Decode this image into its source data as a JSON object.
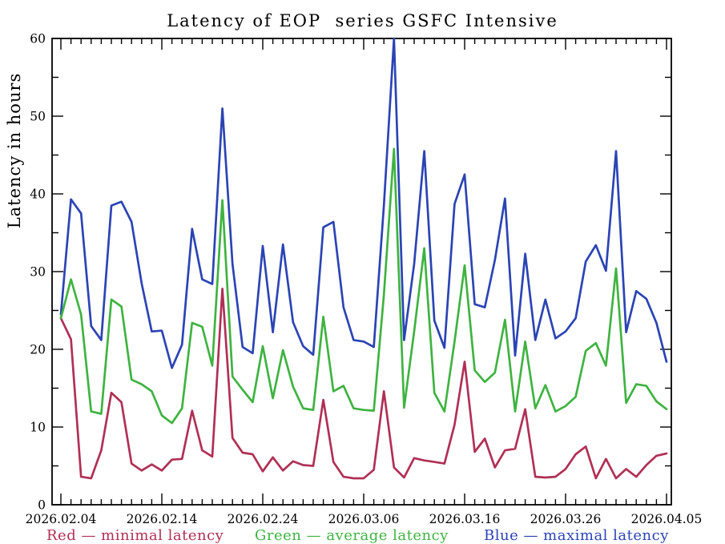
{
  "page": {
    "background": "#ffffff",
    "axis_color": "#000000"
  },
  "chart_data": {
    "type": "line",
    "title": "Latency of EOP  series GSFC Intensive",
    "ylabel": "Latency in hours",
    "xlabel": "",
    "ylim": [
      0,
      60
    ],
    "ytick_values": [
      0,
      10,
      20,
      30,
      40,
      50,
      60
    ],
    "ytick_labels": [
      "0",
      "10",
      "20",
      "30",
      "40",
      "50",
      "60"
    ],
    "ytick_minor_step": 5,
    "x_start_date": "2026.02.04",
    "x_end_date": "2026.04.05",
    "x_days": 61,
    "xtick_day_interval": 10,
    "xtick_labels": [
      "2026.02.04",
      "2026.02.14",
      "2026.02.24",
      "2026.03.06",
      "2026.03.16",
      "2026.03.26",
      "2026.04.05"
    ],
    "grid": false,
    "legend_position": "bottom",
    "series": [
      {
        "name": "minimal-latency",
        "legend_label": "Red — minimal latency",
        "color": "#b03055",
        "values": [
          24.0,
          21.3,
          3.6,
          3.4,
          7.0,
          14.4,
          13.2,
          5.3,
          4.4,
          5.2,
          4.4,
          5.8,
          5.9,
          12.1,
          7.0,
          6.2,
          27.8,
          8.6,
          6.7,
          6.5,
          4.3,
          6.1,
          4.4,
          5.6,
          5.1,
          5.0,
          13.5,
          5.5,
          3.6,
          3.4,
          3.4,
          4.5,
          14.6,
          4.8,
          3.5,
          6.0,
          5.7,
          5.5,
          5.3,
          10.3,
          18.4,
          6.8,
          8.5,
          4.8,
          7.0,
          7.2,
          12.3,
          3.6,
          3.5,
          3.6,
          4.6,
          6.5,
          7.5,
          3.4,
          5.9,
          3.4,
          4.6,
          3.6,
          5.1,
          6.3,
          6.6
        ]
      },
      {
        "name": "average-latency",
        "legend_label": "Green — average latency",
        "color": "#3fb341",
        "values": [
          24.0,
          29.0,
          24.5,
          12.0,
          11.7,
          26.4,
          25.5,
          16.1,
          15.5,
          14.6,
          11.5,
          10.5,
          12.4,
          23.4,
          22.9,
          17.9,
          39.2,
          16.5,
          14.8,
          13.2,
          20.4,
          13.7,
          19.9,
          15.2,
          12.4,
          12.2,
          24.2,
          14.6,
          15.3,
          12.4,
          12.2,
          12.1,
          27.0,
          45.8,
          12.5,
          22.3,
          33.0,
          14.4,
          12.0,
          21.0,
          30.8,
          17.3,
          15.8,
          17.0,
          23.8,
          12.0,
          21.0,
          12.4,
          15.4,
          12.0,
          12.7,
          13.9,
          19.8,
          20.8,
          17.9,
          30.4,
          13.1,
          15.5,
          15.3,
          13.3,
          12.3
        ]
      },
      {
        "name": "maximal-latency",
        "legend_label": "Blue — maximal latency",
        "color": "#2b44b4",
        "values": [
          24.5,
          39.3,
          37.5,
          23.0,
          21.2,
          38.5,
          39.0,
          36.4,
          28.5,
          22.3,
          22.4,
          17.6,
          20.6,
          35.5,
          29.0,
          28.4,
          51.0,
          31.0,
          20.3,
          19.5,
          33.3,
          22.2,
          33.5,
          23.5,
          20.4,
          19.3,
          35.7,
          36.4,
          25.4,
          21.2,
          21.0,
          20.3,
          38.5,
          60.0,
          21.2,
          31.0,
          45.5,
          23.7,
          20.2,
          38.7,
          42.5,
          25.8,
          25.4,
          31.5,
          39.4,
          19.2,
          32.3,
          21.2,
          26.4,
          21.4,
          22.3,
          24.0,
          31.3,
          33.4,
          30.1,
          45.5,
          22.2,
          27.5,
          26.5,
          23.4,
          18.4
        ]
      }
    ]
  }
}
